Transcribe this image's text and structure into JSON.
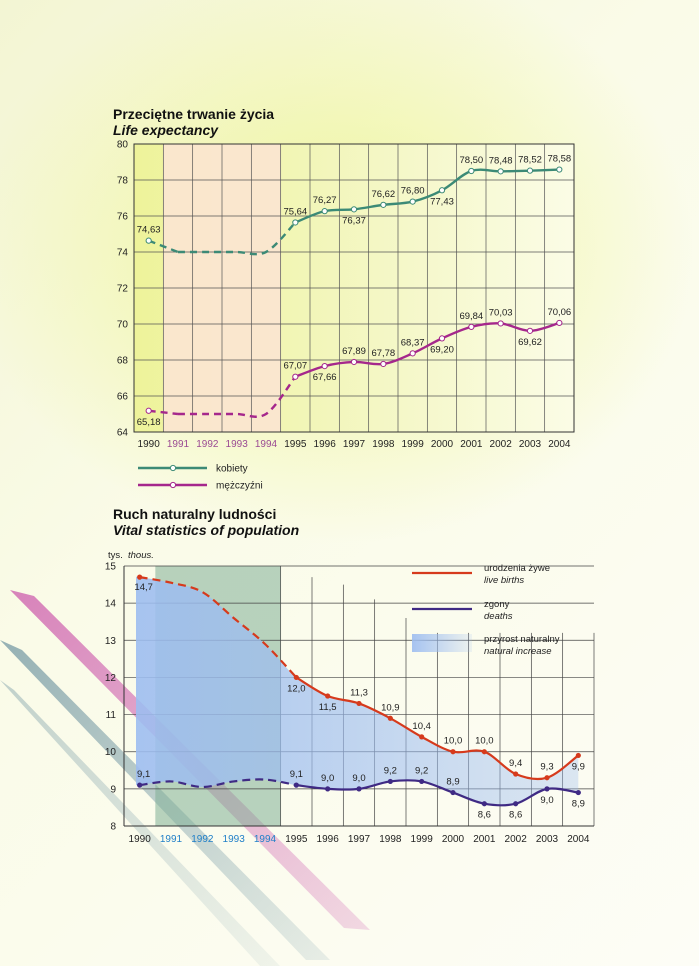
{
  "chart_data": [
    {
      "type": "line",
      "title": "Przeciętne trwanie życia",
      "subtitle": "Life expectancy",
      "x": [
        1990,
        1991,
        1992,
        1993,
        1994,
        1995,
        1996,
        1997,
        1998,
        1999,
        2000,
        2001,
        2002,
        2003,
        2004
      ],
      "highlighted_x": [
        1991,
        1992,
        1993,
        1994
      ],
      "ylim": [
        64,
        80
      ],
      "yticks": [
        64,
        66,
        68,
        70,
        72,
        74,
        76,
        78,
        80
      ],
      "grid": true,
      "legend_position": "bottom-left",
      "series": [
        {
          "name": "kobiety",
          "color": "#3c8a76",
          "values": [
            74.63,
            74.0,
            74.0,
            74.0,
            74.0,
            75.64,
            76.27,
            76.37,
            76.62,
            76.8,
            77.43,
            78.5,
            78.48,
            78.52,
            78.58
          ],
          "labels": [
            "74,63",
            "",
            "",
            "",
            "",
            "75,64",
            "76,27",
            "76,37",
            "76,62",
            "76,80",
            "77,43",
            "78,50",
            "78,48",
            "78,52",
            "78,58"
          ]
        },
        {
          "name": "mężczyźni",
          "color": "#a5278c",
          "values": [
            65.18,
            65.0,
            65.0,
            65.0,
            65.0,
            67.07,
            67.66,
            67.89,
            67.78,
            68.37,
            69.2,
            69.84,
            70.03,
            69.62,
            70.06
          ],
          "labels": [
            "65,18",
            "",
            "",
            "",
            "",
            "67,07",
            "67,66",
            "67,89",
            "67,78",
            "68,37",
            "69,20",
            "69,84",
            "70,03",
            "69,62",
            "70,06"
          ]
        }
      ]
    },
    {
      "type": "line",
      "title": "Ruch naturalny ludności",
      "subtitle": "Vital statistics of population",
      "ylabel": "tys.",
      "ylabel_en": "thous.",
      "x": [
        1990,
        1991,
        1992,
        1993,
        1994,
        1995,
        1996,
        1997,
        1998,
        1999,
        2000,
        2001,
        2002,
        2003,
        2004
      ],
      "highlighted_x": [
        1991,
        1992,
        1993,
        1994
      ],
      "ylim": [
        8,
        15
      ],
      "yticks": [
        8,
        9,
        10,
        11,
        12,
        13,
        14,
        15
      ],
      "grid": true,
      "legend_position": "top-right",
      "series": [
        {
          "name": "urodzenia żywe",
          "name_en": "live births",
          "color": "#d63a1c",
          "values": [
            14.7,
            14.55,
            14.3,
            13.6,
            12.9,
            12.0,
            11.5,
            11.3,
            10.9,
            10.4,
            10.0,
            10.0,
            9.4,
            9.3,
            9.9
          ],
          "labels": [
            "14,7",
            "",
            "",
            "",
            "",
            "12,0",
            "11,5",
            "11,3",
            "10,9",
            "10,4",
            "10,0",
            "10,0",
            "9,4",
            "9,3",
            "9,9"
          ]
        },
        {
          "name": "zgony",
          "name_en": "deaths",
          "color": "#3f2a84",
          "values": [
            9.1,
            9.2,
            9.05,
            9.2,
            9.25,
            9.1,
            9.0,
            9.0,
            9.2,
            9.2,
            8.9,
            8.6,
            8.6,
            9.0,
            8.9
          ],
          "labels": [
            "9,1",
            "",
            "",
            "",
            "",
            "9,1",
            "9,0",
            "9,0",
            "9,2",
            "9,2",
            "8,9",
            "8,6",
            "8,6",
            "9,0",
            "8,9"
          ]
        },
        {
          "name": "przyrost naturalny",
          "name_en": "natural increase",
          "color": "#9dbdf0",
          "fill_between": [
            "urodzenia żywe",
            "zgony"
          ]
        }
      ]
    }
  ]
}
